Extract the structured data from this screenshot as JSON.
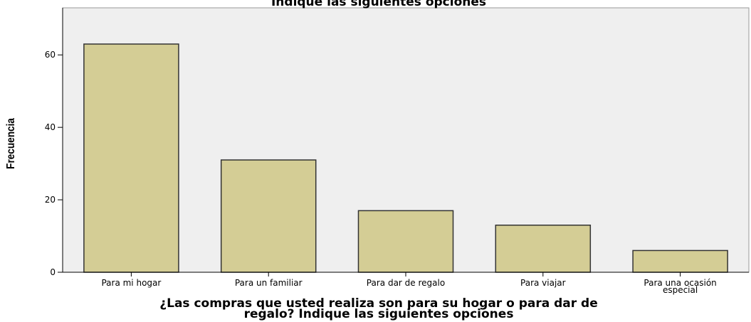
{
  "chart_data": {
    "type": "bar",
    "title": "Indique las siguientes opciones",
    "xlabel": [
      "¿Las compras que usted realiza son para su hogar o para dar de",
      "regalo? Indique las siguientes opciones"
    ],
    "ylabel": "Frecuencia",
    "categories": [
      [
        "Para mi hogar"
      ],
      [
        "Para un familiar"
      ],
      [
        "Para dar de regalo"
      ],
      [
        "Para viajar"
      ],
      [
        "Para una ocasión",
        "especial"
      ]
    ],
    "values": [
      63,
      31,
      17,
      13,
      6
    ],
    "ylim": [
      0,
      73
    ],
    "yticks": [
      0,
      20,
      40,
      60
    ],
    "grid": false,
    "colors": {
      "bar_fill": "#d4cd95",
      "bar_stroke": "#333333",
      "plot_background": "#efefef",
      "axis": "#000000"
    }
  }
}
